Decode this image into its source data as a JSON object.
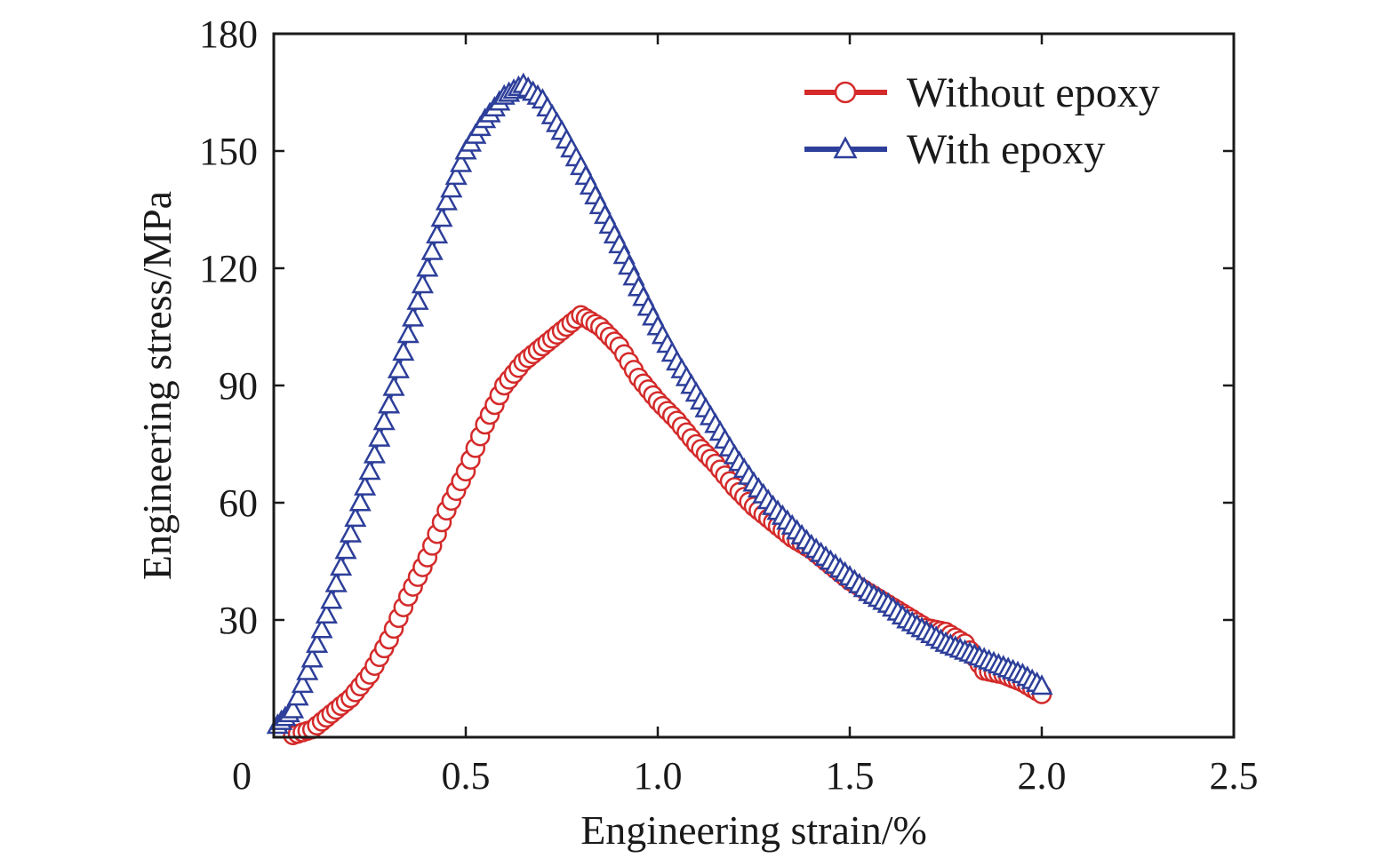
{
  "chart_data": {
    "type": "scatter",
    "xlabel": "Engineering strain/%",
    "ylabel": "Engineering stress/MPa",
    "xlim": [
      0,
      2.5
    ],
    "ylim": [
      0,
      180
    ],
    "x_ticks": [
      "0",
      "0.5",
      "1.0",
      "1.5",
      "2.0",
      "2.5"
    ],
    "y_ticks": [
      "30",
      "60",
      "90",
      "120",
      "150",
      "180"
    ],
    "grid": false,
    "legend_position": "top-right",
    "series": [
      {
        "name": "Without epoxy",
        "color": "#d42a2a",
        "marker": "circle",
        "points": [
          [
            0.05,
            0.5
          ],
          [
            0.1,
            2
          ],
          [
            0.15,
            6
          ],
          [
            0.2,
            10
          ],
          [
            0.25,
            16
          ],
          [
            0.3,
            25
          ],
          [
            0.35,
            36
          ],
          [
            0.4,
            46
          ],
          [
            0.45,
            58
          ],
          [
            0.5,
            68
          ],
          [
            0.55,
            80
          ],
          [
            0.6,
            90
          ],
          [
            0.65,
            96
          ],
          [
            0.7,
            100
          ],
          [
            0.75,
            104
          ],
          [
            0.8,
            108
          ],
          [
            0.85,
            105
          ],
          [
            0.9,
            100
          ],
          [
            0.95,
            92
          ],
          [
            1.0,
            86
          ],
          [
            1.05,
            81
          ],
          [
            1.1,
            75
          ],
          [
            1.15,
            70
          ],
          [
            1.2,
            64
          ],
          [
            1.25,
            59
          ],
          [
            1.3,
            55
          ],
          [
            1.35,
            51
          ],
          [
            1.4,
            48
          ],
          [
            1.45,
            44
          ],
          [
            1.5,
            40
          ],
          [
            1.55,
            37
          ],
          [
            1.6,
            34
          ],
          [
            1.65,
            31
          ],
          [
            1.7,
            28
          ],
          [
            1.75,
            27
          ],
          [
            1.8,
            24
          ],
          [
            1.85,
            17
          ],
          [
            1.9,
            16
          ],
          [
            1.95,
            14
          ],
          [
            2.0,
            11
          ]
        ]
      },
      {
        "name": "With epoxy",
        "color": "#2d3f9a",
        "marker": "triangle",
        "points": [
          [
            0.01,
            3
          ],
          [
            0.05,
            7
          ],
          [
            0.1,
            20
          ],
          [
            0.15,
            35
          ],
          [
            0.2,
            52
          ],
          [
            0.25,
            68
          ],
          [
            0.3,
            85
          ],
          [
            0.35,
            103
          ],
          [
            0.4,
            120
          ],
          [
            0.45,
            137
          ],
          [
            0.5,
            150
          ],
          [
            0.55,
            158
          ],
          [
            0.6,
            164
          ],
          [
            0.65,
            167
          ],
          [
            0.7,
            163
          ],
          [
            0.75,
            155
          ],
          [
            0.8,
            146
          ],
          [
            0.85,
            136
          ],
          [
            0.9,
            126
          ],
          [
            0.95,
            115
          ],
          [
            1.0,
            105
          ],
          [
            1.05,
            96
          ],
          [
            1.1,
            88
          ],
          [
            1.15,
            80
          ],
          [
            1.2,
            72
          ],
          [
            1.25,
            65
          ],
          [
            1.3,
            59
          ],
          [
            1.35,
            54
          ],
          [
            1.4,
            49
          ],
          [
            1.45,
            45
          ],
          [
            1.5,
            41
          ],
          [
            1.55,
            37
          ],
          [
            1.6,
            34
          ],
          [
            1.65,
            30
          ],
          [
            1.7,
            27
          ],
          [
            1.75,
            24
          ],
          [
            1.8,
            22
          ],
          [
            1.85,
            20
          ],
          [
            1.9,
            18
          ],
          [
            1.95,
            16
          ],
          [
            2.0,
            13
          ]
        ]
      }
    ]
  }
}
